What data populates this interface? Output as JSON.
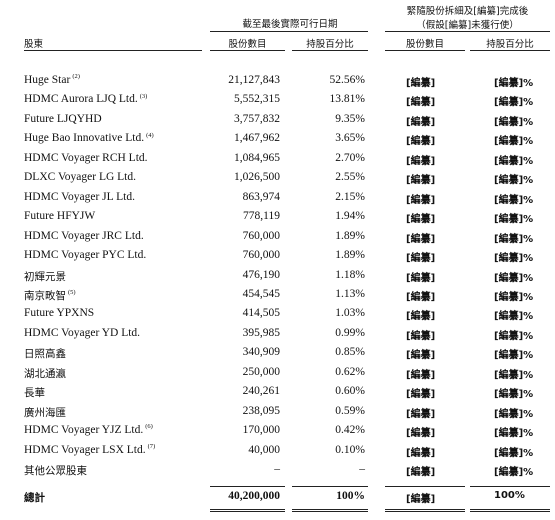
{
  "headers": {
    "group1_title": "截至最後實際可行日期",
    "group2_title_line1": "緊隨股份拆細及[編纂]完成後",
    "group2_title_line2": "（假設[編纂]未獲行使）",
    "shareholder": "股東",
    "shares1": "股份數目",
    "pct1": "持股百分比",
    "shares2": "股份數目",
    "pct2": "持股百分比"
  },
  "rows": [
    {
      "name": "Huge Star",
      "note": "(2)",
      "shares": "21,127,843",
      "pct": "52.56%",
      "shares_after": "[編纂]",
      "pct_after": "[編纂]%"
    },
    {
      "name": "HDMC Aurora LJQ Ltd.",
      "note": "(3)",
      "shares": "5,552,315",
      "pct": "13.81%",
      "shares_after": "[編纂]",
      "pct_after": "[編纂]%"
    },
    {
      "name": "Future LJQYHD",
      "note": "",
      "shares": "3,757,832",
      "pct": "9.35%",
      "shares_after": "[編纂]",
      "pct_after": "[編纂]%"
    },
    {
      "name": "Huge Bao Innovative Ltd.",
      "note": "(4)",
      "shares": "1,467,962",
      "pct": "3.65%",
      "shares_after": "[編纂]",
      "pct_after": "[編纂]%"
    },
    {
      "name": "HDMC Voyager RCH Ltd.",
      "note": "",
      "shares": "1,084,965",
      "pct": "2.70%",
      "shares_after": "[編纂]",
      "pct_after": "[編纂]%"
    },
    {
      "name": "DLXC Voyager LG Ltd.",
      "note": "",
      "shares": "1,026,500",
      "pct": "2.55%",
      "shares_after": "[編纂]",
      "pct_after": "[編纂]%"
    },
    {
      "name": "HDMC Voyager JL Ltd.",
      "note": "",
      "shares": "863,974",
      "pct": "2.15%",
      "shares_after": "[編纂]",
      "pct_after": "[編纂]%"
    },
    {
      "name": "Future HFYJW",
      "note": "",
      "shares": "778,119",
      "pct": "1.94%",
      "shares_after": "[編纂]",
      "pct_after": "[編纂]%"
    },
    {
      "name": "HDMC Voyager JRC Ltd.",
      "note": "",
      "shares": "760,000",
      "pct": "1.89%",
      "shares_after": "[編纂]",
      "pct_after": "[編纂]%"
    },
    {
      "name": "HDMC Voyager PYC Ltd.",
      "note": "",
      "shares": "760,000",
      "pct": "1.89%",
      "shares_after": "[編纂]",
      "pct_after": "[編纂]%"
    },
    {
      "name": "初輝元景",
      "note": "",
      "shares": "476,190",
      "pct": "1.18%",
      "shares_after": "[編纂]",
      "pct_after": "[編纂]%"
    },
    {
      "name": "南京畋智",
      "note": "(5)",
      "shares": "454,545",
      "pct": "1.13%",
      "shares_after": "[編纂]",
      "pct_after": "[編纂]%"
    },
    {
      "name": "Future YPXNS",
      "note": "",
      "shares": "414,505",
      "pct": "1.03%",
      "shares_after": "[編纂]",
      "pct_after": "[編纂]%"
    },
    {
      "name": "HDMC Voyager YD Ltd.",
      "note": "",
      "shares": "395,985",
      "pct": "0.99%",
      "shares_after": "[編纂]",
      "pct_after": "[編纂]%"
    },
    {
      "name": "日照高鑫",
      "note": "",
      "shares": "340,909",
      "pct": "0.85%",
      "shares_after": "[編纂]",
      "pct_after": "[編纂]%"
    },
    {
      "name": "湖北通瀛",
      "note": "",
      "shares": "250,000",
      "pct": "0.62%",
      "shares_after": "[編纂]",
      "pct_after": "[編纂]%"
    },
    {
      "name": "長華",
      "note": "",
      "shares": "240,261",
      "pct": "0.60%",
      "shares_after": "[編纂]",
      "pct_after": "[編纂]%"
    },
    {
      "name": "廣州海匯",
      "note": "",
      "shares": "238,095",
      "pct": "0.59%",
      "shares_after": "[編纂]",
      "pct_after": "[編纂]%"
    },
    {
      "name": "HDMC Voyager YJZ Ltd.",
      "note": "(6)",
      "shares": "170,000",
      "pct": "0.42%",
      "shares_after": "[編纂]",
      "pct_after": "[編纂]%"
    },
    {
      "name": "HDMC Voyager LSX Ltd.",
      "note": "(7)",
      "shares": "40,000",
      "pct": "0.10%",
      "shares_after": "[編纂]",
      "pct_after": "[編纂]%"
    },
    {
      "name": "其他公眾股東",
      "note": "",
      "shares": "–",
      "pct": "–",
      "shares_after": "[編纂]",
      "pct_after": "[編纂]%"
    }
  ],
  "total": {
    "name": "總計",
    "shares": "40,200,000",
    "pct": "100%",
    "shares_after": "[編纂]",
    "pct_after": "100%"
  }
}
